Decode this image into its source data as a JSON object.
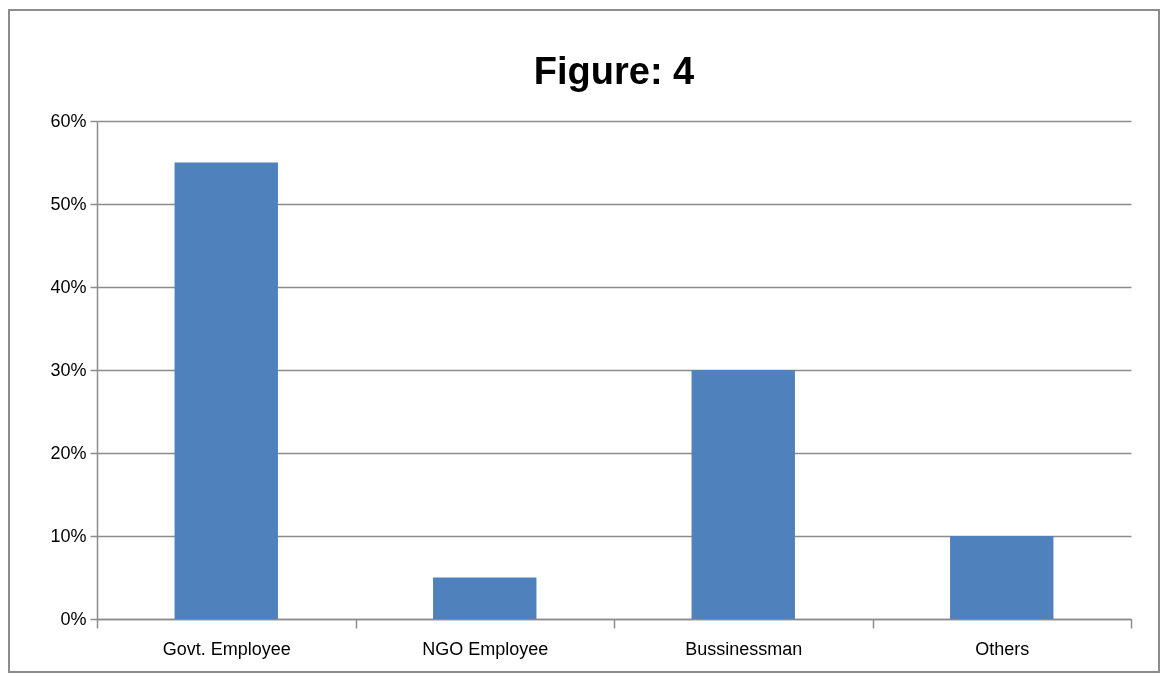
{
  "chart_data": {
    "type": "bar",
    "title": "Figure: 4",
    "categories": [
      "Govt. Employee",
      "NGO Employee",
      "Bussinessman",
      "Others"
    ],
    "values": [
      55,
      5,
      30,
      10
    ],
    "color": "#4f81bd",
    "ylim": [
      0,
      60
    ],
    "yticks": [
      {
        "value": 0,
        "label": "0%"
      },
      {
        "value": 10,
        "label": "10%"
      },
      {
        "value": 20,
        "label": "20%"
      },
      {
        "value": 30,
        "label": "30%"
      },
      {
        "value": 40,
        "label": "40%"
      },
      {
        "value": 50,
        "label": "50%"
      },
      {
        "value": 60,
        "label": "60%"
      }
    ],
    "grid": "y"
  }
}
